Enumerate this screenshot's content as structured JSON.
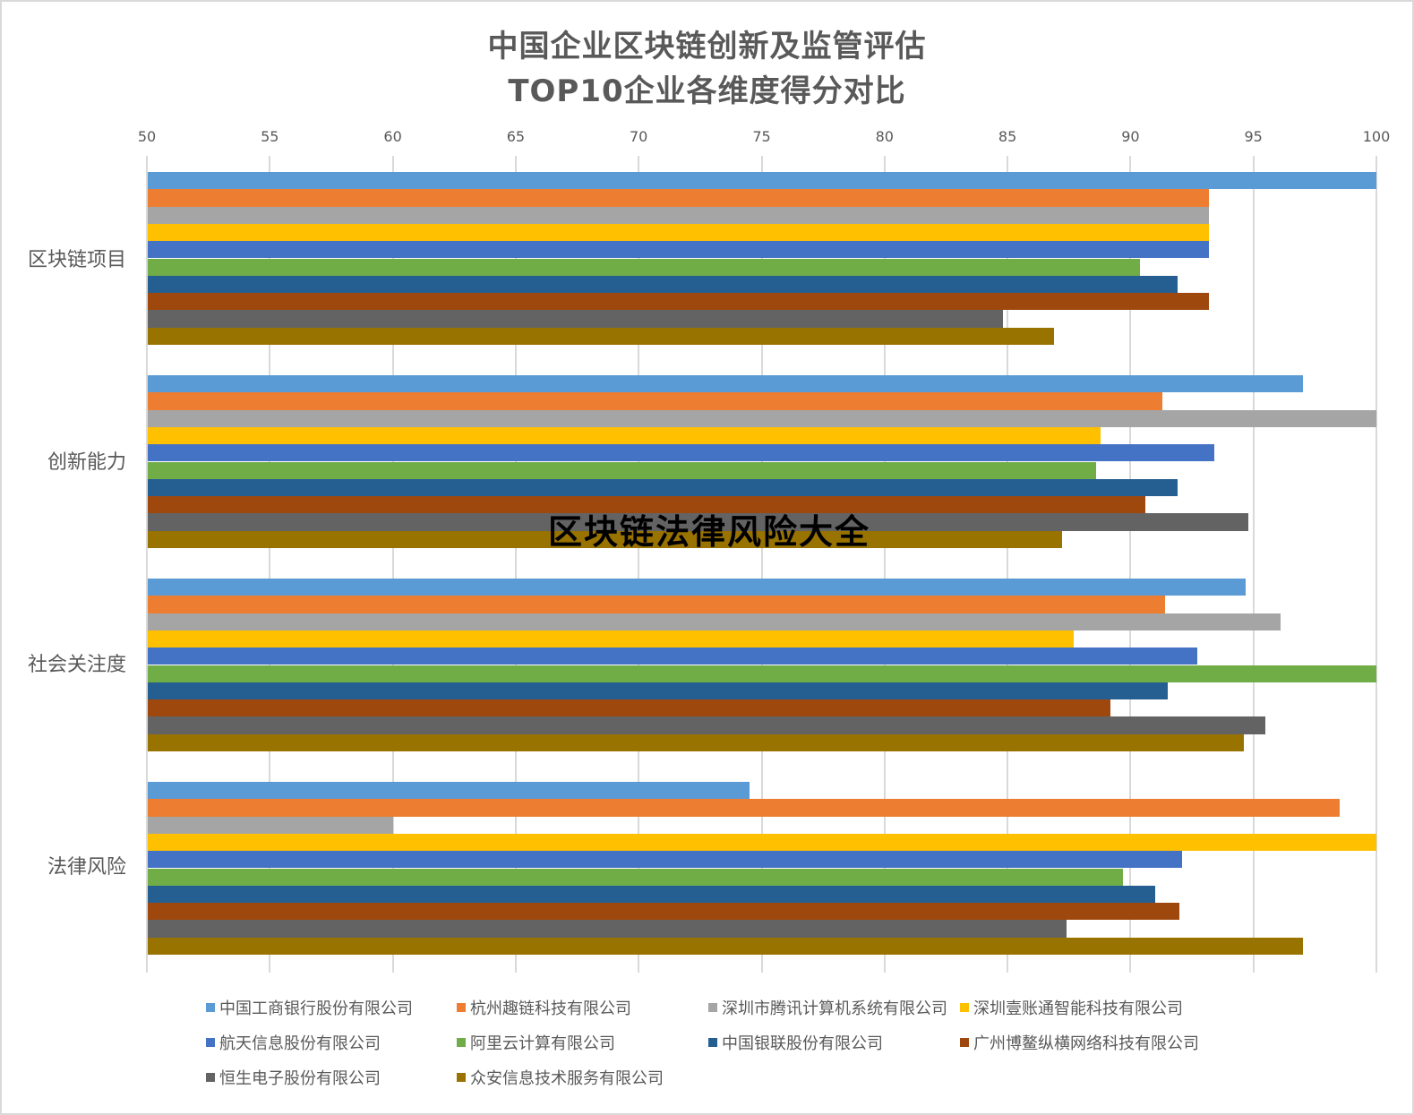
{
  "chart_data": {
    "type": "bar",
    "orientation": "horizontal",
    "title": "中国企业区块链创新及监管评估",
    "subtitle": "TOP10企业各维度得分对比",
    "xlabel": "",
    "ylabel": "",
    "xlim": [
      50,
      100
    ],
    "x_ticks": [
      50,
      55,
      60,
      65,
      70,
      75,
      80,
      85,
      90,
      95,
      100
    ],
    "x_axis_position": "top",
    "grid": true,
    "legend_position": "bottom",
    "categories": [
      "区块链项目",
      "创新能力",
      "社会关注度",
      "法律风险"
    ],
    "series": [
      {
        "name": "中国工商银行股份有限公司",
        "color": "#5B9BD5",
        "values": [
          100,
          97.0,
          94.7,
          74.5
        ]
      },
      {
        "name": "杭州趣链科技有限公司",
        "color": "#ED7D31",
        "values": [
          93.2,
          91.3,
          91.4,
          98.5
        ]
      },
      {
        "name": "深圳市腾讯计算机系统有限公司",
        "color": "#A5A5A5",
        "values": [
          93.2,
          100,
          96.1,
          60.0
        ]
      },
      {
        "name": "深圳壹账通智能科技有限公司",
        "color": "#FFC000",
        "values": [
          93.2,
          88.8,
          87.7,
          100
        ]
      },
      {
        "name": "航天信息股份有限公司",
        "color": "#4472C4",
        "values": [
          93.2,
          93.4,
          92.7,
          92.1
        ]
      },
      {
        "name": "阿里云计算有限公司",
        "color": "#70AD47",
        "values": [
          90.4,
          88.6,
          100,
          89.7
        ]
      },
      {
        "name": "中国银联股份有限公司",
        "color": "#255E91",
        "values": [
          91.9,
          91.9,
          91.5,
          91.0
        ]
      },
      {
        "name": "广州博鳌纵横网络科技有限公司",
        "color": "#9E480E",
        "values": [
          93.2,
          90.6,
          89.2,
          92.0
        ]
      },
      {
        "name": "恒生电子股份有限公司",
        "color": "#636363",
        "values": [
          84.8,
          94.8,
          95.5,
          87.4
        ]
      },
      {
        "name": "众安信息技术服务有限公司",
        "color": "#997300",
        "values": [
          86.9,
          87.2,
          94.6,
          97.0
        ]
      }
    ],
    "annotations": [
      "区块链法律风险大全"
    ]
  },
  "title": {
    "line1": "中国企业区块链创新及监管评估",
    "line2": "TOP10企业各维度得分对比"
  },
  "watermark": "区块链法律风险大全"
}
